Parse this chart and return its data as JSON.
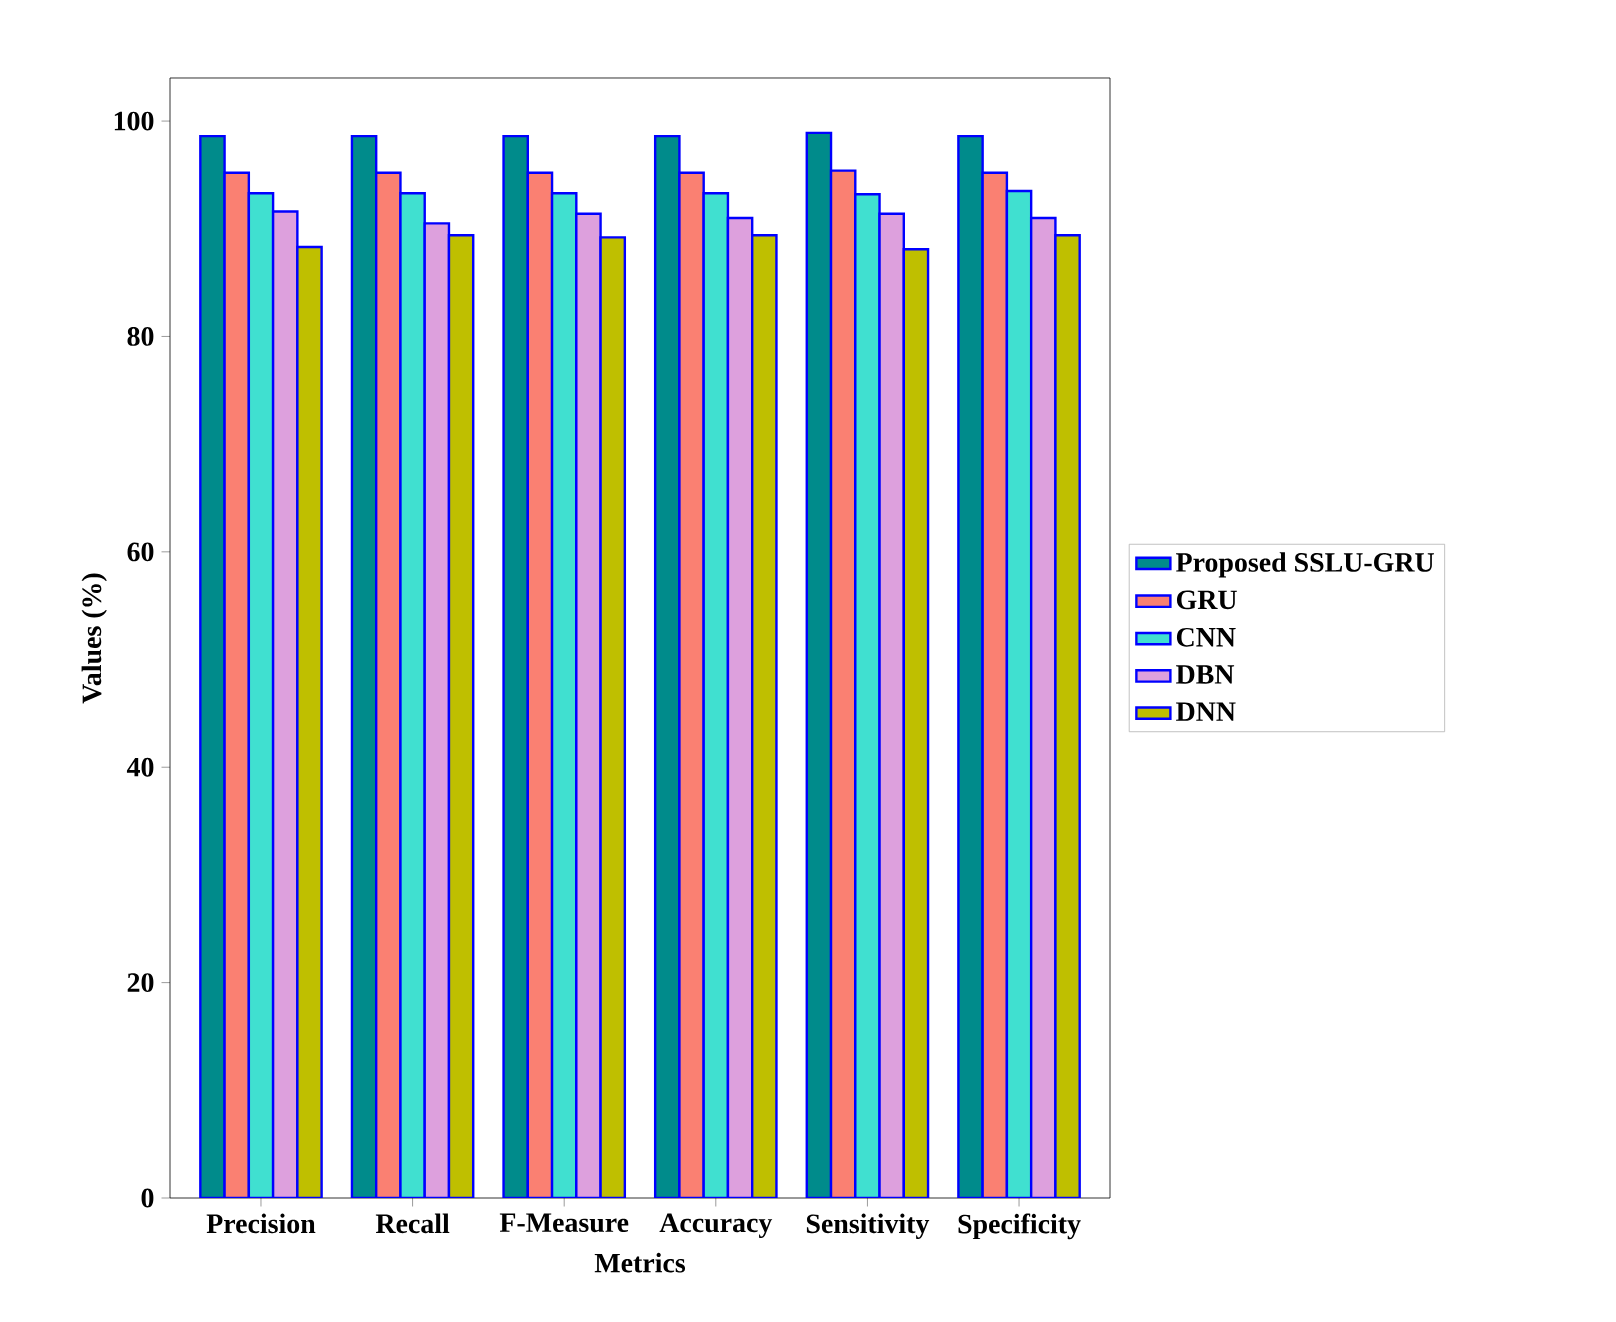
{
  "chart_data": {
    "type": "bar",
    "xlabel": "Metrics",
    "ylabel": "Values (%)",
    "categories": [
      "Precision",
      "Recall",
      "F-Measure",
      "Accuracy",
      "Sensitivity",
      "Specificity"
    ],
    "series": [
      {
        "name": "Proposed SSLU-GRU",
        "color": "#008b8b",
        "values": [
          98.6,
          98.6,
          98.6,
          98.6,
          98.9,
          98.6
        ]
      },
      {
        "name": "GRU",
        "color": "#fa8072",
        "values": [
          95.2,
          95.2,
          95.2,
          95.2,
          95.4,
          95.2
        ]
      },
      {
        "name": "CNN",
        "color": "#40e0d0",
        "values": [
          93.3,
          93.3,
          93.3,
          93.3,
          93.2,
          93.5
        ]
      },
      {
        "name": "DBN",
        "color": "#dda0dd",
        "values": [
          91.6,
          90.5,
          91.4,
          91.0,
          91.4,
          91.0
        ]
      },
      {
        "name": "DNN",
        "color": "#bfbf00",
        "values": [
          88.3,
          89.4,
          89.2,
          89.4,
          88.1,
          89.4
        ]
      }
    ],
    "ylim": [
      0,
      104
    ],
    "yticks": [
      0,
      20,
      40,
      60,
      80,
      100
    ],
    "grid": false,
    "legend": "right"
  }
}
